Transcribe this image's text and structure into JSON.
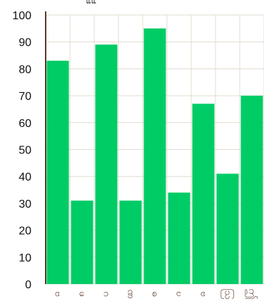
{
  "chart_data": {
    "type": "bar",
    "title": "ແແ",
    "categories": [
      "ဗ",
      "ဖ",
      "ဂ",
      "ဏ",
      "ဓ",
      "ဎ",
      "ဗ",
      "ဩ",
      "ဤ"
    ],
    "values": [
      83,
      31,
      89,
      31,
      95,
      34,
      67,
      41,
      70
    ],
    "ylim": [
      0,
      100
    ],
    "yticks": [
      "0",
      "10",
      "20",
      "30",
      "40",
      "50",
      "60",
      "70",
      "80",
      "90",
      "100"
    ],
    "grid": true,
    "colors": {
      "bar": "#00cc66",
      "axis": "#5a3a2a",
      "grid": "#e2dccf"
    }
  }
}
